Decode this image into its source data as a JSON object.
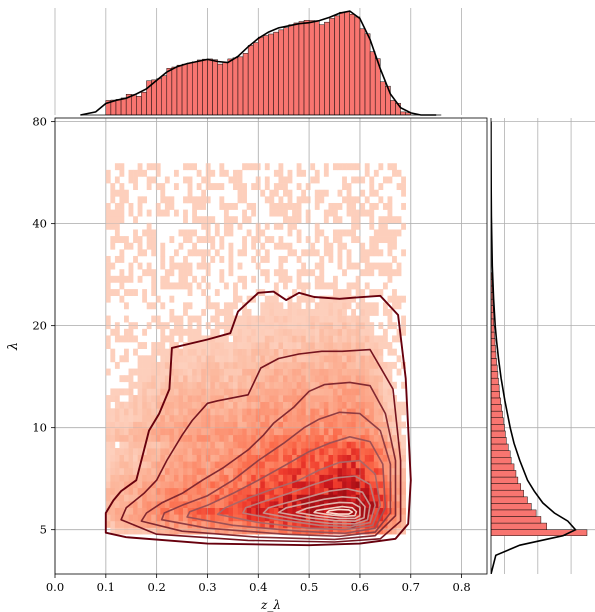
{
  "chart_data": {
    "type": "joint-hist2d-kde",
    "xlabel": "z_λ",
    "ylabel": "λ",
    "x_ticks": [
      "0.0",
      "0.1",
      "0.2",
      "0.3",
      "0.4",
      "0.5",
      "0.6",
      "0.7",
      "0.8"
    ],
    "y_ticks": [
      "5",
      "10",
      "20",
      "40",
      "80"
    ],
    "x_tick_values": [
      0.0,
      0.1,
      0.2,
      0.3,
      0.4,
      0.5,
      0.6,
      0.7,
      0.8
    ],
    "y_tick_values": [
      5,
      10,
      20,
      40,
      80
    ],
    "xlim": [
      0.0,
      0.85
    ],
    "ylim": [
      3.7,
      82
    ],
    "y_scale": "log",
    "grid": true,
    "colors": {
      "bar_fill": "#f87570",
      "bar_edge": "#000000",
      "kde_line": "#000000",
      "heat_low": "#fee5d9",
      "heat_high": "#a50f15",
      "contour_outer": "#67000d",
      "contour_inner": "#fcbba1",
      "grid": "#b0b0b0"
    },
    "x_marginal": {
      "bins": [
        0.1,
        0.12,
        0.14,
        0.16,
        0.18,
        0.2,
        0.22,
        0.24,
        0.26,
        0.28,
        0.3,
        0.32,
        0.34,
        0.36,
        0.38,
        0.4,
        0.42,
        0.44,
        0.46,
        0.48,
        0.5,
        0.52,
        0.54,
        0.56,
        0.58,
        0.6,
        0.62,
        0.64,
        0.66,
        0.68,
        0.7
      ],
      "heights": [
        0.14,
        0.15,
        0.2,
        0.18,
        0.33,
        0.35,
        0.45,
        0.48,
        0.5,
        0.53,
        0.54,
        0.49,
        0.54,
        0.56,
        0.67,
        0.75,
        0.78,
        0.82,
        0.87,
        0.9,
        0.91,
        0.87,
        0.93,
        0.99,
        0.97,
        0.83,
        0.61,
        0.32,
        0.14,
        0.03
      ],
      "kde_x": [
        0.05,
        0.08,
        0.1,
        0.12,
        0.14,
        0.16,
        0.18,
        0.2,
        0.22,
        0.24,
        0.26,
        0.28,
        0.3,
        0.32,
        0.34,
        0.36,
        0.38,
        0.4,
        0.42,
        0.44,
        0.46,
        0.48,
        0.5,
        0.52,
        0.54,
        0.56,
        0.58,
        0.6,
        0.62,
        0.64,
        0.66,
        0.68,
        0.7,
        0.72,
        0.75
      ],
      "kde_y": [
        0.0,
        0.03,
        0.11,
        0.14,
        0.16,
        0.2,
        0.25,
        0.33,
        0.41,
        0.46,
        0.49,
        0.51,
        0.53,
        0.51,
        0.5,
        0.56,
        0.65,
        0.73,
        0.79,
        0.83,
        0.85,
        0.87,
        0.88,
        0.9,
        0.93,
        0.97,
        0.99,
        0.92,
        0.72,
        0.44,
        0.2,
        0.07,
        0.02,
        0.0,
        0.0
      ]
    },
    "y_marginal": {
      "bins_log": true,
      "bin_edges": [
        4.6,
        4.8,
        5.0,
        5.23,
        5.47,
        5.72,
        5.98,
        6.25,
        6.54,
        6.84,
        7.15,
        7.48,
        7.82,
        8.18,
        8.55,
        8.95,
        9.36,
        9.78,
        10.23,
        10.7,
        11.19,
        11.7,
        12.24,
        12.8,
        13.39,
        14.0,
        14.64,
        15.31,
        16.01,
        16.74,
        17.51,
        18.31,
        19.15,
        20.03,
        20.94,
        21.9,
        22.9,
        23.95,
        25.05,
        26.19,
        27.39,
        28.65
      ],
      "widths": [
        0.0,
        1.0,
        0.58,
        0.52,
        0.47,
        0.42,
        0.38,
        0.34,
        0.31,
        0.28,
        0.26,
        0.24,
        0.21,
        0.2,
        0.18,
        0.16,
        0.15,
        0.14,
        0.13,
        0.12,
        0.11,
        0.1,
        0.09,
        0.085,
        0.078,
        0.072,
        0.065,
        0.058,
        0.052,
        0.047,
        0.042,
        0.037,
        0.033,
        0.029,
        0.026,
        0.023,
        0.02,
        0.017,
        0.015,
        0.012,
        0.01
      ],
      "kde_y": [
        3.7,
        4.2,
        4.5,
        4.8,
        5.0,
        5.3,
        5.6,
        6.0,
        6.5,
        7.0,
        8.0,
        9.0,
        10.0,
        12.0,
        14.0,
        16.0,
        18.0,
        20.0,
        24.0,
        30.0,
        36.0,
        42.0,
        50.0,
        60.0,
        70.0,
        80.0
      ],
      "kde_w": [
        0.0,
        0.05,
        0.3,
        0.75,
        0.88,
        0.8,
        0.66,
        0.54,
        0.45,
        0.38,
        0.3,
        0.24,
        0.2,
        0.145,
        0.105,
        0.078,
        0.058,
        0.044,
        0.027,
        0.014,
        0.008,
        0.004,
        0.002,
        0.001,
        0.0,
        0.0
      ]
    },
    "contours": [
      {
        "level": 1,
        "points": [
          [
            0.1,
            4.9
          ],
          [
            0.14,
            4.75
          ],
          [
            0.3,
            4.55
          ],
          [
            0.5,
            4.5
          ],
          [
            0.6,
            4.55
          ],
          [
            0.67,
            4.7
          ],
          [
            0.695,
            5.2
          ],
          [
            0.7,
            7.0
          ],
          [
            0.69,
            14.0
          ],
          [
            0.675,
            21.5
          ],
          [
            0.64,
            24.5
          ],
          [
            0.59,
            24.2
          ],
          [
            0.56,
            24.0
          ],
          [
            0.51,
            24.3
          ],
          [
            0.48,
            25.0
          ],
          [
            0.455,
            23.8
          ],
          [
            0.43,
            25.2
          ],
          [
            0.4,
            25.0
          ],
          [
            0.36,
            22.0
          ],
          [
            0.345,
            19.0
          ],
          [
            0.3,
            18.2
          ],
          [
            0.23,
            17.2
          ],
          [
            0.225,
            13.0
          ],
          [
            0.205,
            11.0
          ],
          [
            0.185,
            9.8
          ],
          [
            0.16,
            7.0
          ],
          [
            0.13,
            6.5
          ],
          [
            0.115,
            6.1
          ],
          [
            0.1,
            5.6
          ],
          [
            0.1,
            4.9
          ]
        ]
      },
      {
        "level": 2,
        "points": [
          [
            0.13,
            5.35
          ],
          [
            0.2,
            4.85
          ],
          [
            0.38,
            4.65
          ],
          [
            0.55,
            4.6
          ],
          [
            0.64,
            4.7
          ],
          [
            0.68,
            5.3
          ],
          [
            0.68,
            8.0
          ],
          [
            0.665,
            13.0
          ],
          [
            0.62,
            17.0
          ],
          [
            0.565,
            16.8
          ],
          [
            0.525,
            16.8
          ],
          [
            0.48,
            16.5
          ],
          [
            0.44,
            16.0
          ],
          [
            0.405,
            15.0
          ],
          [
            0.38,
            12.5
          ],
          [
            0.32,
            12.0
          ],
          [
            0.3,
            11.8
          ],
          [
            0.27,
            10.5
          ],
          [
            0.25,
            9.5
          ],
          [
            0.22,
            8.0
          ],
          [
            0.2,
            7.0
          ],
          [
            0.175,
            6.4
          ],
          [
            0.14,
            5.8
          ],
          [
            0.13,
            5.35
          ]
        ]
      },
      {
        "level": 3,
        "points": [
          [
            0.17,
            5.3
          ],
          [
            0.25,
            4.95
          ],
          [
            0.4,
            4.75
          ],
          [
            0.55,
            4.68
          ],
          [
            0.63,
            4.8
          ],
          [
            0.67,
            5.5
          ],
          [
            0.67,
            8.0
          ],
          [
            0.65,
            11.0
          ],
          [
            0.62,
            13.3
          ],
          [
            0.58,
            13.6
          ],
          [
            0.53,
            13.4
          ],
          [
            0.5,
            12.8
          ],
          [
            0.47,
            11.5
          ],
          [
            0.43,
            10.3
          ],
          [
            0.41,
            9.5
          ],
          [
            0.38,
            8.6
          ],
          [
            0.33,
            7.6
          ],
          [
            0.29,
            7.0
          ],
          [
            0.25,
            6.4
          ],
          [
            0.21,
            6.0
          ],
          [
            0.18,
            5.6
          ],
          [
            0.17,
            5.3
          ]
        ]
      },
      {
        "level": 4,
        "points": [
          [
            0.21,
            5.35
          ],
          [
            0.3,
            5.05
          ],
          [
            0.45,
            4.85
          ],
          [
            0.56,
            4.78
          ],
          [
            0.63,
            4.92
          ],
          [
            0.66,
            5.6
          ],
          [
            0.66,
            7.8
          ],
          [
            0.64,
            9.8
          ],
          [
            0.6,
            11.0
          ],
          [
            0.56,
            11.1
          ],
          [
            0.52,
            10.6
          ],
          [
            0.49,
            10.0
          ],
          [
            0.45,
            9.0
          ],
          [
            0.4,
            8.0
          ],
          [
            0.35,
            7.0
          ],
          [
            0.3,
            6.3
          ],
          [
            0.25,
            5.9
          ],
          [
            0.215,
            5.6
          ],
          [
            0.21,
            5.35
          ]
        ]
      },
      {
        "level": 5,
        "points": [
          [
            0.26,
            5.45
          ],
          [
            0.35,
            5.15
          ],
          [
            0.48,
            4.95
          ],
          [
            0.57,
            4.88
          ],
          [
            0.63,
            5.05
          ],
          [
            0.65,
            5.8
          ],
          [
            0.645,
            7.8
          ],
          [
            0.62,
            9.1
          ],
          [
            0.58,
            9.4
          ],
          [
            0.54,
            9.0
          ],
          [
            0.5,
            8.5
          ],
          [
            0.45,
            7.7
          ],
          [
            0.4,
            7.0
          ],
          [
            0.35,
            6.4
          ],
          [
            0.3,
            5.9
          ],
          [
            0.265,
            5.65
          ],
          [
            0.26,
            5.45
          ]
        ]
      },
      {
        "level": 6,
        "points": [
          [
            0.32,
            5.55
          ],
          [
            0.4,
            5.25
          ],
          [
            0.5,
            5.05
          ],
          [
            0.57,
            5.0
          ],
          [
            0.625,
            5.15
          ],
          [
            0.64,
            5.9
          ],
          [
            0.63,
            7.3
          ],
          [
            0.6,
            8.0
          ],
          [
            0.56,
            7.9
          ],
          [
            0.52,
            7.5
          ],
          [
            0.48,
            7.0
          ],
          [
            0.43,
            6.6
          ],
          [
            0.38,
            6.2
          ],
          [
            0.335,
            5.8
          ],
          [
            0.32,
            5.55
          ]
        ]
      },
      {
        "level": 7,
        "points": [
          [
            0.37,
            5.6
          ],
          [
            0.44,
            5.35
          ],
          [
            0.52,
            5.15
          ],
          [
            0.58,
            5.1
          ],
          [
            0.62,
            5.25
          ],
          [
            0.63,
            5.9
          ],
          [
            0.62,
            6.8
          ],
          [
            0.59,
            7.2
          ],
          [
            0.55,
            7.1
          ],
          [
            0.51,
            6.8
          ],
          [
            0.46,
            6.4
          ],
          [
            0.41,
            6.05
          ],
          [
            0.375,
            5.8
          ],
          [
            0.37,
            5.6
          ]
        ]
      },
      {
        "level": 8,
        "points": [
          [
            0.41,
            5.6
          ],
          [
            0.48,
            5.35
          ],
          [
            0.54,
            5.22
          ],
          [
            0.59,
            5.2
          ],
          [
            0.615,
            5.35
          ],
          [
            0.62,
            5.9
          ],
          [
            0.605,
            6.45
          ],
          [
            0.575,
            6.6
          ],
          [
            0.54,
            6.5
          ],
          [
            0.5,
            6.25
          ],
          [
            0.455,
            6.0
          ],
          [
            0.42,
            5.8
          ],
          [
            0.41,
            5.6
          ]
        ]
      },
      {
        "level": 9,
        "points": [
          [
            0.44,
            5.62
          ],
          [
            0.5,
            5.42
          ],
          [
            0.55,
            5.32
          ],
          [
            0.59,
            5.3
          ],
          [
            0.608,
            5.42
          ],
          [
            0.61,
            5.85
          ],
          [
            0.595,
            6.2
          ],
          [
            0.565,
            6.25
          ],
          [
            0.53,
            6.15
          ],
          [
            0.495,
            5.98
          ],
          [
            0.455,
            5.8
          ],
          [
            0.44,
            5.62
          ]
        ]
      },
      {
        "level": 10,
        "points": [
          [
            0.475,
            5.62
          ],
          [
            0.52,
            5.48
          ],
          [
            0.56,
            5.4
          ],
          [
            0.59,
            5.4
          ],
          [
            0.6,
            5.5
          ],
          [
            0.6,
            5.82
          ],
          [
            0.585,
            6.0
          ],
          [
            0.56,
            6.02
          ],
          [
            0.53,
            5.93
          ],
          [
            0.495,
            5.78
          ],
          [
            0.475,
            5.62
          ]
        ]
      },
      {
        "level": 11,
        "points": [
          [
            0.51,
            5.62
          ],
          [
            0.545,
            5.52
          ],
          [
            0.572,
            5.48
          ],
          [
            0.59,
            5.5
          ],
          [
            0.593,
            5.65
          ],
          [
            0.585,
            5.8
          ],
          [
            0.565,
            5.85
          ],
          [
            0.54,
            5.78
          ],
          [
            0.515,
            5.7
          ],
          [
            0.51,
            5.62
          ]
        ]
      },
      {
        "level": 12,
        "points": [
          [
            0.535,
            5.62
          ],
          [
            0.558,
            5.56
          ],
          [
            0.578,
            5.56
          ],
          [
            0.585,
            5.64
          ],
          [
            0.578,
            5.72
          ],
          [
            0.558,
            5.74
          ],
          [
            0.54,
            5.69
          ],
          [
            0.535,
            5.62
          ]
        ]
      }
    ]
  }
}
